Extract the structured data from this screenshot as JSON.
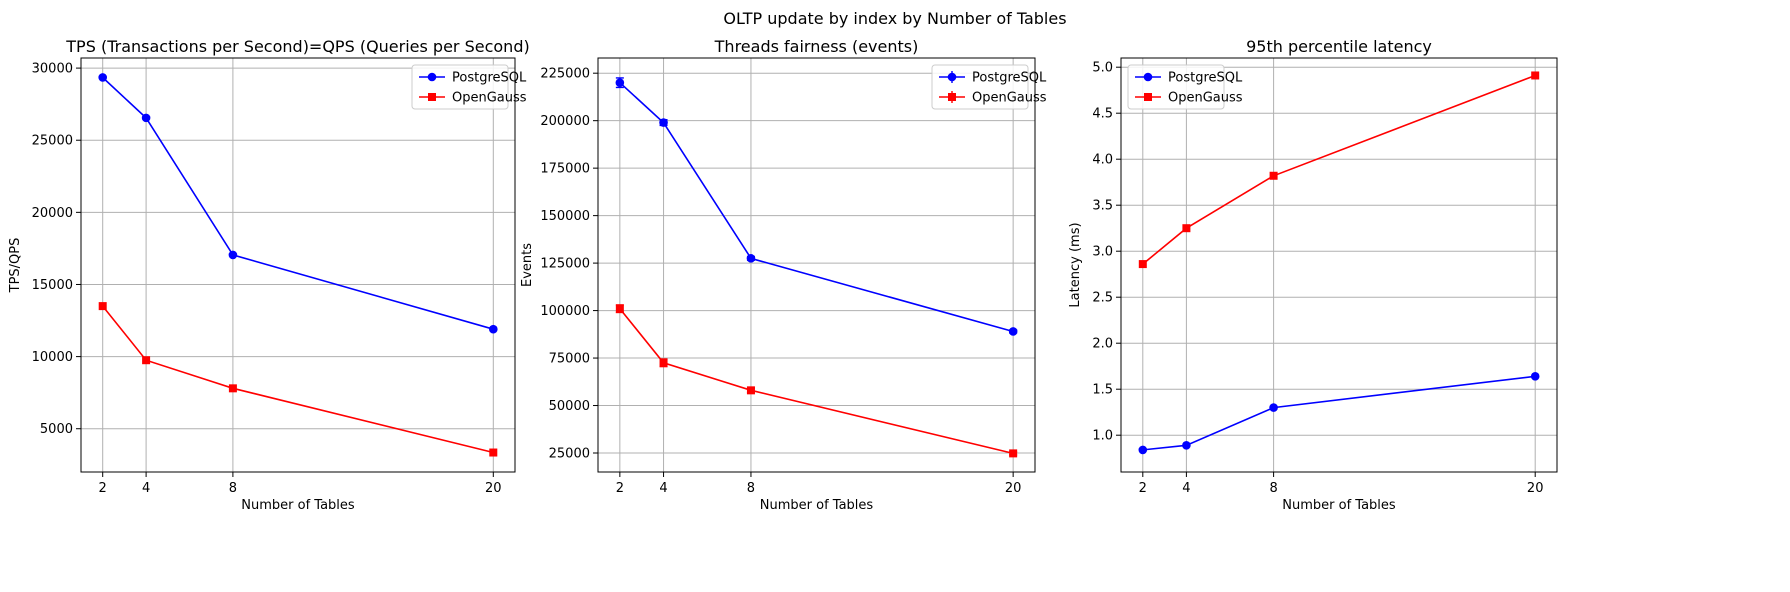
{
  "figure": {
    "suptitle": "OLTP update by index by Number of Tables"
  },
  "chart_data": [
    {
      "type": "line",
      "title": "TPS (Transactions per Second)=QPS (Queries per Second)",
      "xlabel": "Number of Tables",
      "ylabel": "TPS/QPS",
      "x": [
        2,
        4,
        8,
        20
      ],
      "xticks": [
        2,
        4,
        8,
        20
      ],
      "xlim": [
        1,
        21
      ],
      "ylim": [
        2000,
        30700
      ],
      "yticks": [
        5000,
        10000,
        15000,
        20000,
        25000,
        30000
      ],
      "grid": true,
      "legend_position": "top-right",
      "series": [
        {
          "name": "PostgreSQL",
          "values": [
            29350,
            26550,
            17050,
            11900
          ],
          "color": "#0000ff",
          "marker": "circle"
        },
        {
          "name": "OpenGauss",
          "values": [
            13500,
            9750,
            7800,
            3350
          ],
          "color": "#ff0000",
          "marker": "square"
        }
      ]
    },
    {
      "type": "line",
      "title": "Threads fairness (events)",
      "xlabel": "Number of Tables",
      "ylabel": "Events",
      "x": [
        2,
        4,
        8,
        20
      ],
      "xticks": [
        2,
        4,
        8,
        20
      ],
      "xlim": [
        1,
        21
      ],
      "ylim": [
        15000,
        233000
      ],
      "yticks": [
        25000,
        50000,
        75000,
        100000,
        125000,
        150000,
        175000,
        200000,
        225000
      ],
      "grid": true,
      "error_bars": true,
      "legend_position": "top-right",
      "series": [
        {
          "name": "PostgreSQL",
          "values": [
            220000,
            199000,
            127500,
            89000
          ],
          "errors": [
            2500,
            1500,
            1000,
            800
          ],
          "color": "#0000ff",
          "marker": "circle"
        },
        {
          "name": "OpenGauss",
          "values": [
            101000,
            72500,
            58000,
            24800
          ],
          "errors": [
            2000,
            2000,
            1200,
            800
          ],
          "color": "#ff0000",
          "marker": "square"
        }
      ]
    },
    {
      "type": "line",
      "title": "95th percentile latency",
      "xlabel": "Number of Tables",
      "ylabel": "Latency (ms)",
      "x": [
        2,
        4,
        8,
        20
      ],
      "xticks": [
        2,
        4,
        8,
        20
      ],
      "xlim": [
        1,
        21
      ],
      "ylim": [
        0.6,
        5.1
      ],
      "yticks": [
        1.0,
        1.5,
        2.0,
        2.5,
        3.0,
        3.5,
        4.0,
        4.5,
        5.0
      ],
      "grid": true,
      "legend_position": "top-left",
      "series": [
        {
          "name": "PostgreSQL",
          "values": [
            0.84,
            0.89,
            1.3,
            1.64
          ],
          "color": "#0000ff",
          "marker": "circle"
        },
        {
          "name": "OpenGauss",
          "values": [
            2.86,
            3.25,
            3.82,
            4.91
          ],
          "color": "#ff0000",
          "marker": "square"
        }
      ]
    }
  ]
}
